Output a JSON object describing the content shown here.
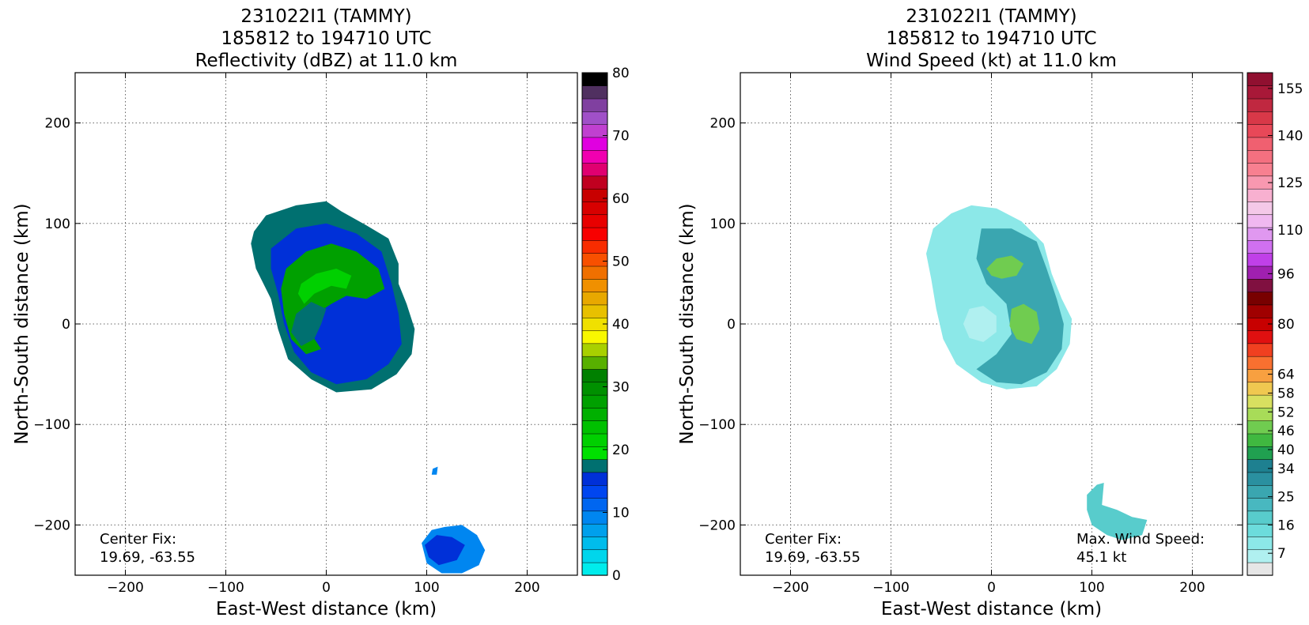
{
  "chart_data": [
    {
      "type": "heatmap",
      "title_lines": [
        "231022I1 (TAMMY)",
        "185812 to 194710 UTC",
        "Reflectivity (dBZ) at 11.0 km"
      ],
      "xlabel": "East-West distance (km)",
      "ylabel": "North-South distance (km)",
      "xlim": [
        -250,
        250
      ],
      "ylim": [
        -250,
        250
      ],
      "x_ticks": [
        -200,
        -100,
        0,
        100,
        200
      ],
      "y_ticks": [
        -200,
        -100,
        0,
        100,
        200
      ],
      "grid": true,
      "annotations": [
        {
          "lines": [
            "Center Fix:",
            "19.69, -63.55"
          ],
          "corner": "bottom-left"
        }
      ],
      "colorbar": {
        "min": 0,
        "max": 80,
        "tick_labels": [
          "0",
          "10",
          "20",
          "30",
          "40",
          "50",
          "60",
          "70",
          "80"
        ],
        "tick_values": [
          0,
          10,
          20,
          30,
          40,
          50,
          60,
          70,
          80
        ],
        "colors": [
          "#00ecec",
          "#00d6ec",
          "#00bcec",
          "#00a0ec",
          "#0086f0",
          "#0066f0",
          "#0046f0",
          "#0030d8",
          "#007070",
          "#00e000",
          "#00d000",
          "#00c000",
          "#00b000",
          "#00a000",
          "#009000",
          "#008000",
          "#58b000",
          "#a8d000",
          "#f8f800",
          "#f0e000",
          "#e8c000",
          "#e8a800",
          "#f09000",
          "#f07000",
          "#f85000",
          "#f82c00",
          "#f80000",
          "#e80000",
          "#d80000",
          "#c80000",
          "#c00020",
          "#e00070",
          "#f000b0",
          "#e000e0",
          "#c040d0",
          "#a050c8",
          "#8040a0",
          "#503060",
          "#000000"
        ]
      },
      "regions": [
        {
          "name": "main-outer",
          "level": 8,
          "points": [
            [
              -72,
              92
            ],
            [
              -60,
              108
            ],
            [
              -30,
              118
            ],
            [
              0,
              122
            ],
            [
              15,
              112
            ],
            [
              40,
              98
            ],
            [
              62,
              85
            ],
            [
              72,
              60
            ],
            [
              72,
              40
            ],
            [
              80,
              20
            ],
            [
              88,
              -5
            ],
            [
              85,
              -30
            ],
            [
              70,
              -50
            ],
            [
              45,
              -65
            ],
            [
              10,
              -68
            ],
            [
              -15,
              -55
            ],
            [
              -38,
              -35
            ],
            [
              -48,
              -5
            ],
            [
              -55,
              25
            ],
            [
              -70,
              55
            ],
            [
              -75,
              80
            ]
          ]
        },
        {
          "name": "main-mid",
          "level": 7,
          "points": [
            [
              -55,
              75
            ],
            [
              -30,
              95
            ],
            [
              0,
              100
            ],
            [
              30,
              90
            ],
            [
              55,
              72
            ],
            [
              65,
              40
            ],
            [
              72,
              10
            ],
            [
              75,
              -20
            ],
            [
              62,
              -40
            ],
            [
              40,
              -55
            ],
            [
              10,
              -60
            ],
            [
              -15,
              -48
            ],
            [
              -32,
              -28
            ],
            [
              -42,
              0
            ],
            [
              -48,
              30
            ],
            [
              -55,
              55
            ]
          ]
        },
        {
          "name": "main-green",
          "level": 13,
          "points": [
            [
              -40,
              55
            ],
            [
              -20,
              72
            ],
            [
              5,
              80
            ],
            [
              30,
              72
            ],
            [
              52,
              55
            ],
            [
              58,
              35
            ],
            [
              40,
              25
            ],
            [
              20,
              28
            ],
            [
              5,
              20
            ],
            [
              -10,
              10
            ],
            [
              -15,
              -10
            ],
            [
              -5,
              -25
            ],
            [
              -20,
              -30
            ],
            [
              -35,
              -15
            ],
            [
              -42,
              10
            ],
            [
              -45,
              35
            ]
          ]
        },
        {
          "name": "main-teal",
          "level": 8,
          "points": [
            [
              -30,
              10
            ],
            [
              -15,
              22
            ],
            [
              0,
              15
            ],
            [
              -5,
              0
            ],
            [
              -12,
              -15
            ],
            [
              -25,
              -22
            ],
            [
              -35,
              -8
            ]
          ]
        },
        {
          "name": "main-ring-green",
          "level": 10,
          "points": [
            [
              -25,
              40
            ],
            [
              -10,
              50
            ],
            [
              10,
              55
            ],
            [
              25,
              48
            ],
            [
              20,
              35
            ],
            [
              5,
              38
            ],
            [
              -12,
              30
            ],
            [
              -22,
              20
            ],
            [
              -28,
              30
            ]
          ]
        },
        {
          "name": "south-outer",
          "level": 4,
          "points": [
            [
              95,
              -218
            ],
            [
              105,
              -205
            ],
            [
              118,
              -202
            ],
            [
              135,
              -200
            ],
            [
              150,
              -210
            ],
            [
              158,
              -225
            ],
            [
              152,
              -240
            ],
            [
              135,
              -248
            ],
            [
              115,
              -248
            ],
            [
              100,
              -238
            ]
          ]
        },
        {
          "name": "south-inner",
          "level": 7,
          "points": [
            [
              98,
              -220
            ],
            [
              110,
              -210
            ],
            [
              125,
              -212
            ],
            [
              138,
              -220
            ],
            [
              130,
              -235
            ],
            [
              112,
              -240
            ],
            [
              102,
              -232
            ]
          ]
        },
        {
          "name": "south-speck",
          "level": 4,
          "points": [
            [
              106,
              -144
            ],
            [
              111,
              -142
            ],
            [
              110,
              -150
            ],
            [
              105,
              -150
            ]
          ]
        }
      ]
    },
    {
      "type": "heatmap",
      "title_lines": [
        "231022I1 (TAMMY)",
        "185812 to 194710 UTC",
        "Wind Speed (kt) at 11.0 km"
      ],
      "xlabel": "East-West distance (km)",
      "ylabel": "North-South distance (km)",
      "xlim": [
        -250,
        250
      ],
      "ylim": [
        -250,
        250
      ],
      "x_ticks": [
        -200,
        -100,
        0,
        100,
        200
      ],
      "y_ticks": [
        -200,
        -100,
        0,
        100,
        200
      ],
      "grid": true,
      "annotations": [
        {
          "lines": [
            "Center Fix:",
            "19.69, -63.55"
          ],
          "corner": "bottom-left"
        },
        {
          "lines": [
            "Max. Wind Speed:",
            "45.1 kt"
          ],
          "corner": "bottom-right"
        }
      ],
      "colorbar": {
        "min": 0,
        "max": 160,
        "tick_labels": [
          "7",
          "16",
          "25",
          "34",
          "40",
          "46",
          "52",
          "58",
          "64",
          "80",
          "96",
          "110",
          "125",
          "140",
          "155"
        ],
        "tick_values": [
          7,
          16,
          25,
          34,
          40,
          46,
          52,
          58,
          64,
          80,
          96,
          110,
          125,
          140,
          155
        ],
        "colors": [
          "#e6e6e6",
          "#b0f0f0",
          "#8ce8e8",
          "#6cdcdc",
          "#58cccc",
          "#48b8c0",
          "#3aa6b0",
          "#2a90a0",
          "#1e8090",
          "#20a050",
          "#40b840",
          "#70cc50",
          "#a8dc58",
          "#d8e060",
          "#f0c850",
          "#f8a040",
          "#f87030",
          "#f04020",
          "#e01010",
          "#c80000",
          "#a00000",
          "#780000",
          "#801040",
          "#a020b0",
          "#c040e8",
          "#d070f0",
          "#e098f0",
          "#f0b8f0",
          "#f4c8e8",
          "#f8b0d0",
          "#f898b0",
          "#f88090",
          "#f47080",
          "#f06070",
          "#e84858",
          "#d83848",
          "#c02840",
          "#a81838",
          "#901030"
        ]
      },
      "regions": [
        {
          "name": "main-outer",
          "level": 2,
          "points": [
            [
              -58,
              95
            ],
            [
              -40,
              110
            ],
            [
              -20,
              118
            ],
            [
              5,
              115
            ],
            [
              30,
              102
            ],
            [
              52,
              80
            ],
            [
              60,
              50
            ],
            [
              70,
              25
            ],
            [
              80,
              5
            ],
            [
              78,
              -20
            ],
            [
              65,
              -45
            ],
            [
              45,
              -62
            ],
            [
              15,
              -65
            ],
            [
              -10,
              -58
            ],
            [
              -35,
              -40
            ],
            [
              -48,
              -15
            ],
            [
              -55,
              15
            ],
            [
              -60,
              45
            ],
            [
              -65,
              70
            ]
          ]
        },
        {
          "name": "main-teal",
          "level": 6,
          "points": [
            [
              -10,
              95
            ],
            [
              20,
              95
            ],
            [
              45,
              82
            ],
            [
              55,
              55
            ],
            [
              65,
              25
            ],
            [
              72,
              0
            ],
            [
              70,
              -25
            ],
            [
              55,
              -48
            ],
            [
              30,
              -60
            ],
            [
              5,
              -58
            ],
            [
              -15,
              -45
            ],
            [
              5,
              -30
            ],
            [
              20,
              -10
            ],
            [
              15,
              20
            ],
            [
              -5,
              40
            ],
            [
              -15,
              65
            ]
          ]
        },
        {
          "name": "main-greenN",
          "level": 11,
          "points": [
            [
              -5,
              55
            ],
            [
              5,
              65
            ],
            [
              20,
              68
            ],
            [
              32,
              60
            ],
            [
              25,
              48
            ],
            [
              10,
              45
            ],
            [
              0,
              48
            ]
          ]
        },
        {
          "name": "main-greenE",
          "level": 11,
          "points": [
            [
              20,
              15
            ],
            [
              32,
              20
            ],
            [
              45,
              12
            ],
            [
              48,
              -5
            ],
            [
              40,
              -20
            ],
            [
              25,
              -15
            ],
            [
              18,
              -2
            ]
          ]
        },
        {
          "name": "eye",
          "level": 1,
          "points": [
            [
              -22,
              15
            ],
            [
              -8,
              18
            ],
            [
              5,
              8
            ],
            [
              5,
              -8
            ],
            [
              -8,
              -18
            ],
            [
              -22,
              -14
            ],
            [
              -28,
              0
            ]
          ]
        },
        {
          "name": "south-teal",
          "level": 4,
          "points": [
            [
              95,
              -170
            ],
            [
              105,
              -160
            ],
            [
              112,
              -158
            ],
            [
              110,
              -180
            ],
            [
              125,
              -185
            ],
            [
              140,
              -192
            ],
            [
              155,
              -195
            ],
            [
              150,
              -210
            ],
            [
              130,
              -215
            ],
            [
              115,
              -210
            ],
            [
              100,
              -200
            ],
            [
              95,
              -185
            ]
          ]
        }
      ]
    }
  ]
}
